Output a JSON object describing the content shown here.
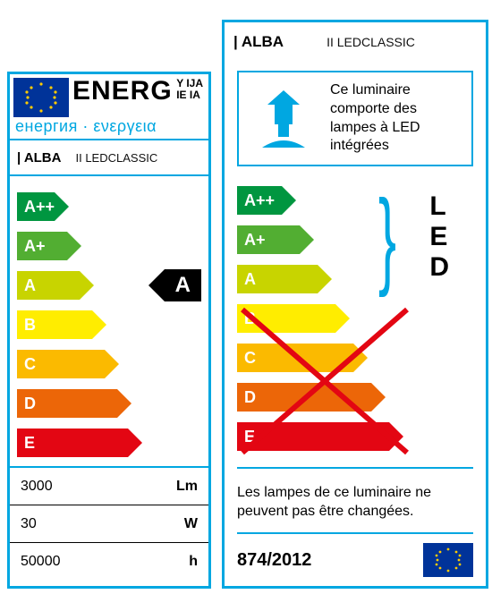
{
  "left": {
    "energ_word": "ENERG",
    "energ_suffix": "Y IJA\nIE IA",
    "energ_sub": "енергия · ενεργεια",
    "brand": "ALBA",
    "model": "II LEDCLASSIC",
    "scale": [
      {
        "grade": "A++",
        "color": "#009640",
        "width": 42
      },
      {
        "grade": "A+",
        "color": "#52ae32",
        "width": 56
      },
      {
        "grade": "A",
        "color": "#c8d400",
        "width": 70
      },
      {
        "grade": "B",
        "color": "#ffed00",
        "width": 84
      },
      {
        "grade": "C",
        "color": "#fbba00",
        "width": 98
      },
      {
        "grade": "D",
        "color": "#ec6608",
        "width": 112
      },
      {
        "grade": "E",
        "color": "#e30613",
        "width": 124
      }
    ],
    "rating": {
      "grade": "A",
      "row_index": 2
    },
    "specs": [
      {
        "value": "3000",
        "unit": "Lm"
      },
      {
        "value": "30",
        "unit": "W"
      },
      {
        "value": "50000",
        "unit": "h"
      }
    ],
    "eu_flag_color": "#003399",
    "eu_star_color": "#ffcc00"
  },
  "right": {
    "brand": "ALBA",
    "model": "II LEDCLASSIC",
    "lamp_text": "Ce luminaire comporte des lampes à LED intégrées",
    "lamp_icon_color": "#00a7e1",
    "scale": [
      {
        "grade": "A++",
        "color": "#009640",
        "width": 50
      },
      {
        "grade": "A+",
        "color": "#52ae32",
        "width": 70
      },
      {
        "grade": "A",
        "color": "#c8d400",
        "width": 90
      },
      {
        "grade": "B",
        "color": "#ffed00",
        "width": 110
      },
      {
        "grade": "C",
        "color": "#fbba00",
        "width": 130
      },
      {
        "grade": "D",
        "color": "#ec6608",
        "width": 150
      },
      {
        "grade": "E",
        "color": "#e30613",
        "width": 170
      }
    ],
    "led_label": "L\nE\nD",
    "cross_color": "#e30613",
    "footer_note": "Les lampes de ce luminaire ne peuvent pas être changées.",
    "regulation": "874/2012",
    "eu_flag_color": "#003399",
    "eu_star_color": "#ffcc00"
  },
  "border_color": "#00a7e1"
}
